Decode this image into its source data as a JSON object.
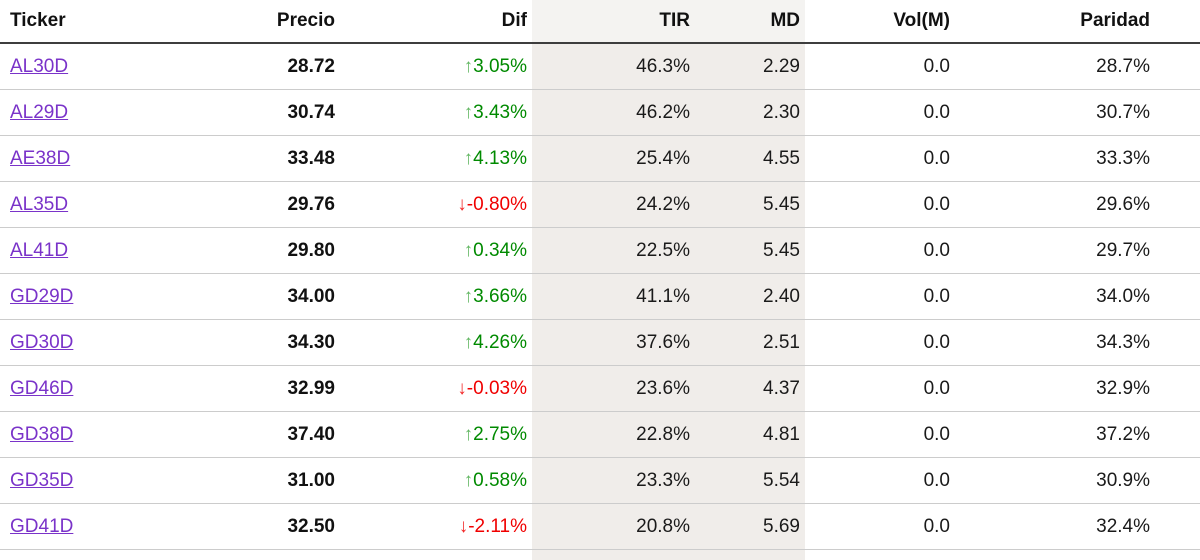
{
  "table": {
    "columns": [
      {
        "key": "ticker",
        "label": "Ticker",
        "align": "left",
        "shaded": false
      },
      {
        "key": "precio",
        "label": "Precio",
        "align": "right",
        "shaded": false
      },
      {
        "key": "dif",
        "label": "Dif",
        "align": "right",
        "shaded": false
      },
      {
        "key": "tir",
        "label": "TIR",
        "align": "right",
        "shaded": true
      },
      {
        "key": "md",
        "label": "MD",
        "align": "right",
        "shaded": true
      },
      {
        "key": "vol",
        "label": "Vol(M)",
        "align": "right",
        "shaded": false
      },
      {
        "key": "paridad",
        "label": "Paridad",
        "align": "right",
        "shaded": false
      }
    ],
    "rows": [
      {
        "ticker": "AL30D",
        "precio": "28.72",
        "dif": "3.05%",
        "direction": "up",
        "tir": "46.3%",
        "md": "2.29",
        "vol": "0.0",
        "paridad": "28.7%"
      },
      {
        "ticker": "AL29D",
        "precio": "30.74",
        "dif": "3.43%",
        "direction": "up",
        "tir": "46.2%",
        "md": "2.30",
        "vol": "0.0",
        "paridad": "30.7%"
      },
      {
        "ticker": "AE38D",
        "precio": "33.48",
        "dif": "4.13%",
        "direction": "up",
        "tir": "25.4%",
        "md": "4.55",
        "vol": "0.0",
        "paridad": "33.3%"
      },
      {
        "ticker": "AL35D",
        "precio": "29.76",
        "dif": "-0.80%",
        "direction": "down",
        "tir": "24.2%",
        "md": "5.45",
        "vol": "0.0",
        "paridad": "29.6%"
      },
      {
        "ticker": "AL41D",
        "precio": "29.80",
        "dif": "0.34%",
        "direction": "up",
        "tir": "22.5%",
        "md": "5.45",
        "vol": "0.0",
        "paridad": "29.7%"
      },
      {
        "ticker": "GD29D",
        "precio": "34.00",
        "dif": "3.66%",
        "direction": "up",
        "tir": "41.1%",
        "md": "2.40",
        "vol": "0.0",
        "paridad": "34.0%"
      },
      {
        "ticker": "GD30D",
        "precio": "34.30",
        "dif": "4.26%",
        "direction": "up",
        "tir": "37.6%",
        "md": "2.51",
        "vol": "0.0",
        "paridad": "34.3%"
      },
      {
        "ticker": "GD46D",
        "precio": "32.99",
        "dif": "-0.03%",
        "direction": "down",
        "tir": "23.6%",
        "md": "4.37",
        "vol": "0.0",
        "paridad": "32.9%"
      },
      {
        "ticker": "GD38D",
        "precio": "37.40",
        "dif": "2.75%",
        "direction": "up",
        "tir": "22.8%",
        "md": "4.81",
        "vol": "0.0",
        "paridad": "37.2%"
      },
      {
        "ticker": "GD35D",
        "precio": "31.00",
        "dif": "0.58%",
        "direction": "up",
        "tir": "23.3%",
        "md": "5.54",
        "vol": "0.0",
        "paridad": "30.9%"
      },
      {
        "ticker": "GD41D",
        "precio": "32.50",
        "dif": "-2.11%",
        "direction": "down",
        "tir": "20.8%",
        "md": "5.69",
        "vol": "0.0",
        "paridad": "32.4%"
      }
    ],
    "icons": {
      "up_arrow": "↑",
      "down_arrow": "↓"
    },
    "colors": {
      "up": "#008a00",
      "down": "#f00000",
      "link": "#7a33c9",
      "shaded_col": "#f0edea",
      "shaded_header": "#f4f3f1",
      "header_rule": "#3d3d3d",
      "row_rule": "#cccccc"
    }
  }
}
